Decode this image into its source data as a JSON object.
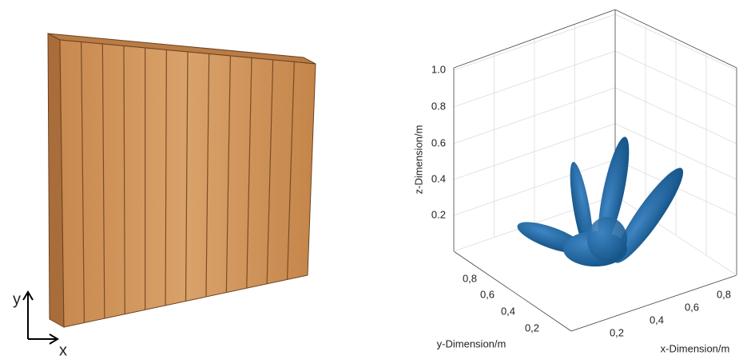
{
  "left": {
    "axis_y": "y",
    "axis_x": "x"
  },
  "right": {
    "z_label": "z-Dimension/m",
    "y_label": "y-Dimension/m",
    "x_label": "x-Dimension/m",
    "z_ticks": [
      "1.0",
      "0.8",
      "0.6",
      "0.4",
      "0.2"
    ],
    "y_ticks": [
      "0,8",
      "0,6",
      "0,4",
      "0,2"
    ],
    "x_ticks": [
      "0,2",
      "0,4",
      "0,6",
      "0,8"
    ]
  }
}
